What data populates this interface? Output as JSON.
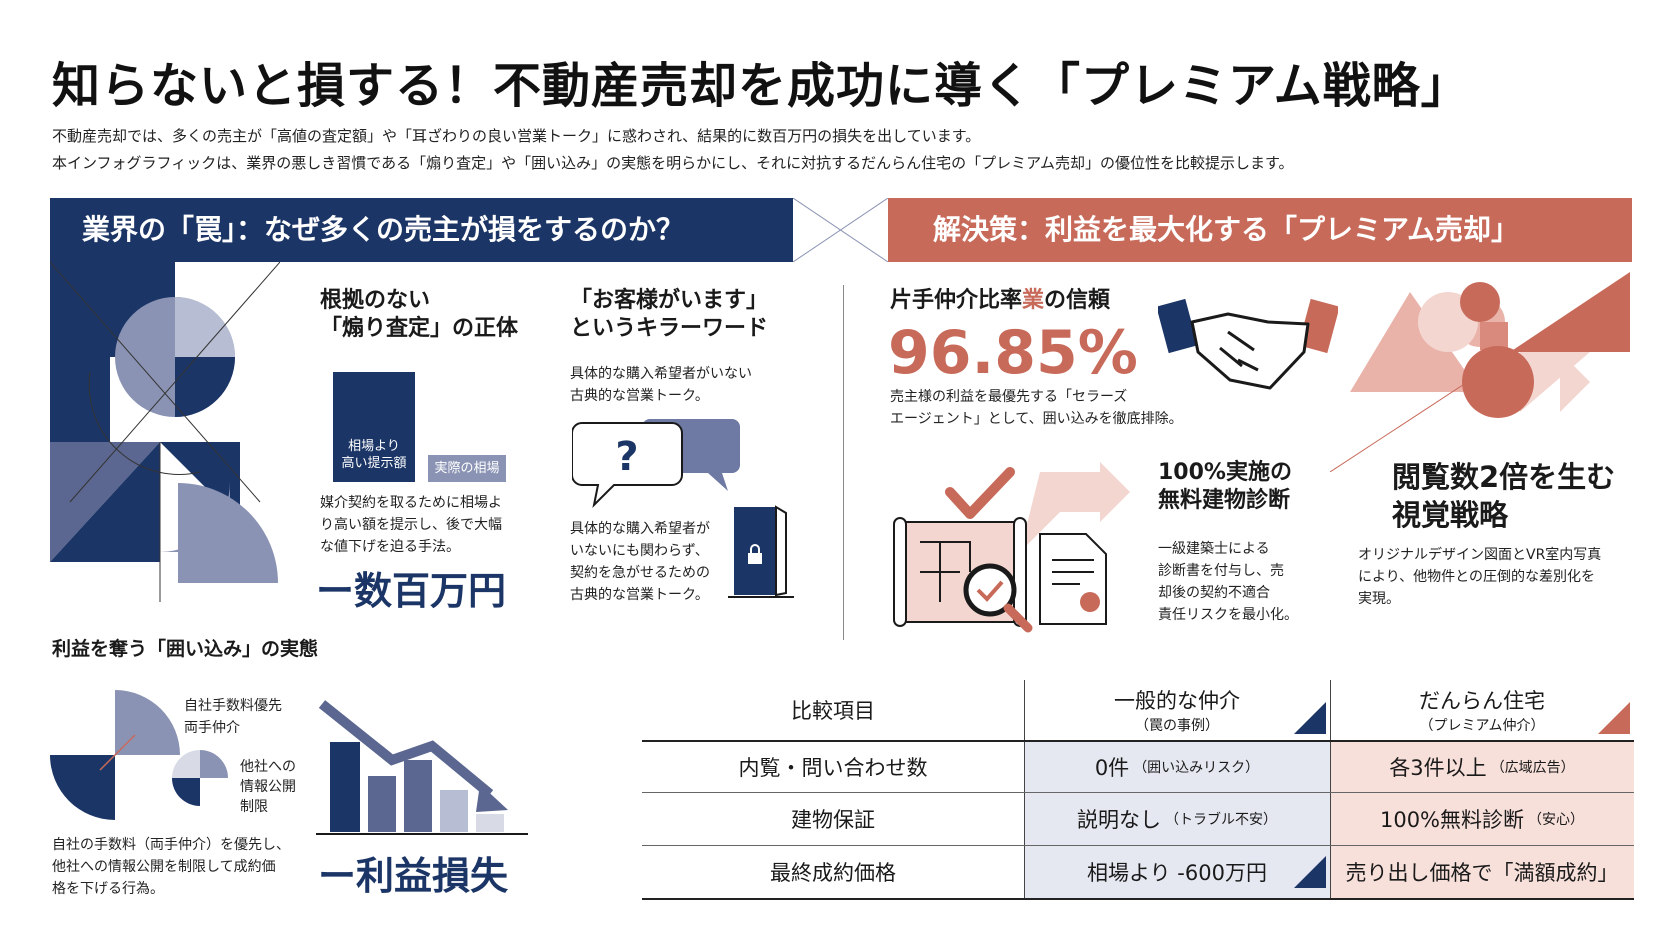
{
  "title": "知らないと損する！不動産売却を成功に導く「プレミアム戦略」",
  "intro": [
    "不動産売却では、多くの売主が「高値の査定額」や「耳ざわりの良い営業トーク」に惑わされ、結果的に数百万円の損失を出しています。",
    "本インフォグラフィックは、業界の悪しき習慣である「煽り査定」や「囲い込み」の実態を明らかにし、それに対抗するだんらん住宅の「プレミアム売却」の優位性を比較提示します。"
  ],
  "left": {
    "header": "業界の「罠」：なぜ多くの売主が損をするのか？",
    "appraisal": {
      "title_line1": "根拠のない",
      "title_line2": "「煽り査定」の正体",
      "bar_high_line1": "相場より",
      "bar_high_line2": "高い提示額",
      "bar_actual": "実際の相場",
      "desc": [
        "媒介契約を取るために相場よ",
        "り高い額を提示し、後で大幅",
        "な値下げを迫る手法。"
      ],
      "loss": "ー数百万円"
    },
    "killer": {
      "title_line1": "「お客様がいます」",
      "title_line2": "というキラーワード",
      "desc_top": [
        "具体的な購入希望者がいない",
        "古典的な営業トーク。"
      ],
      "question_mark": "?",
      "desc_bottom": [
        "具体的な購入希望者が",
        "いないにも関わらず、",
        "契約を急がせるための",
        "古典的な営業トーク。"
      ]
    },
    "enclosure": {
      "title": "利益を奪う「囲い込み」の実態",
      "label1_line1": "自社手数料優先",
      "label1_line2": "両手仲介",
      "label2": [
        "他社への",
        "情報公開",
        "制限"
      ],
      "desc": [
        "自社の手数料（両手仲介）を優先し、",
        "他社への情報公開を制限して成約価",
        "格を下げる行為。"
      ],
      "loss": "ー利益損失"
    }
  },
  "right": {
    "header": "解決策：利益を最大化する「プレミアム売却」",
    "trust": {
      "title_a": "片手仲介比率",
      "title_b": "業",
      "title_c": "の信頼",
      "stat": "96.85%",
      "desc": [
        "売主様の利益を最優先する「セラーズ",
        "エージェント」として、囲い込みを徹底排除。"
      ]
    },
    "inspection": {
      "title_line1": "100%実施の",
      "title_line2": "無料建物診断",
      "desc": [
        "一級建築士による",
        "診断書を付与し、売",
        "却後の契約不適合",
        "責任リスクを最小化。"
      ]
    },
    "visual": {
      "title_line1": "閲覧数2倍を生む",
      "title_line2": "視覚戦略",
      "desc": [
        "オリジナルデザイン図面とVR室内写真",
        "により、他物件との圧倒的な差別化を",
        "実現。"
      ]
    }
  },
  "comparison": {
    "header": {
      "item": "比較項目",
      "general": "一般的な仲介",
      "general_sub": "（罠の事例）",
      "danran": "だんらん住宅",
      "danran_sub": "（プレミアム仲介）"
    },
    "rows": [
      {
        "item": "内覧・問い合わせ数",
        "general": "0件",
        "general_note": "（囲い込みリスク）",
        "danran": "各3件以上",
        "danran_note": "（広域広告）"
      },
      {
        "item": "建物保証",
        "general": "説明なし",
        "general_note": "（トラブル不安）",
        "danran": "100%無料診断",
        "danran_note": "（安心）"
      },
      {
        "item": "最終成約価格",
        "general": "相場より -600万円",
        "general_note": "",
        "danran": "売り出し価格で「満額成約」",
        "danran_note": ""
      }
    ]
  },
  "colors": {
    "navy": "#1b3566",
    "terracotta": "#c86a5a",
    "slate": "#8a93b3",
    "pink": "#f3d6d0"
  }
}
